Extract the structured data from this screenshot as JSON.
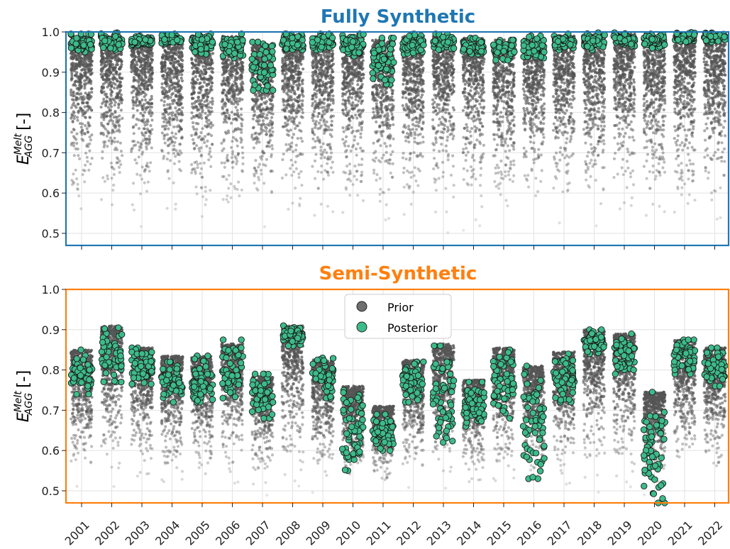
{
  "chart_data": [
    {
      "type": "scatter",
      "title": "Fully Synthetic",
      "title_color": "#1f77b4",
      "frame_color": "#1f77b4",
      "ylabel_main": "E",
      "ylabel_sup": "Melt",
      "ylabel_sub": "AGG",
      "ylabel_suffix": " [-]",
      "ylim": [
        0.47,
        1.0
      ],
      "yticks": [
        "0.5",
        "0.6",
        "0.7",
        "0.8",
        "0.9",
        "1.0"
      ],
      "grid": true,
      "categories": [
        "2001",
        "2002",
        "2003",
        "2004",
        "2005",
        "2006",
        "2007",
        "2008",
        "2009",
        "2010",
        "2011",
        "2012",
        "2013",
        "2014",
        "2015",
        "2016",
        "2017",
        "2018",
        "2019",
        "2020",
        "2021",
        "2022"
      ],
      "show_xticklabels": false,
      "series": [
        {
          "role": "prior",
          "color": "#555555",
          "description_per_year": "prior range [min, max]",
          "ranges": [
            [
              0.47,
              0.99
            ],
            [
              0.47,
              0.99
            ],
            [
              0.47,
              0.985
            ],
            [
              0.47,
              0.99
            ],
            [
              0.47,
              0.99
            ],
            [
              0.47,
              0.99
            ],
            [
              0.47,
              0.97
            ],
            [
              0.47,
              0.99
            ],
            [
              0.47,
              0.99
            ],
            [
              0.47,
              0.99
            ],
            [
              0.47,
              0.98
            ],
            [
              0.47,
              0.99
            ],
            [
              0.47,
              0.99
            ],
            [
              0.47,
              0.985
            ],
            [
              0.47,
              0.98
            ],
            [
              0.47,
              0.985
            ],
            [
              0.47,
              0.99
            ],
            [
              0.47,
              0.995
            ],
            [
              0.47,
              0.995
            ],
            [
              0.47,
              0.99
            ],
            [
              0.47,
              0.995
            ],
            [
              0.47,
              0.995
            ]
          ]
        },
        {
          "role": "posterior",
          "color": "#3dbb8a",
          "description_per_year": "posterior [min, max]",
          "ranges": [
            [
              0.95,
              0.995
            ],
            [
              0.955,
              0.998
            ],
            [
              0.965,
              0.99
            ],
            [
              0.97,
              0.995
            ],
            [
              0.945,
              0.995
            ],
            [
              0.935,
              0.995
            ],
            [
              0.855,
              0.975
            ],
            [
              0.955,
              0.995
            ],
            [
              0.955,
              0.995
            ],
            [
              0.94,
              0.995
            ],
            [
              0.87,
              0.985
            ],
            [
              0.945,
              0.995
            ],
            [
              0.955,
              0.995
            ],
            [
              0.945,
              0.985
            ],
            [
              0.93,
              0.98
            ],
            [
              0.935,
              0.99
            ],
            [
              0.955,
              0.995
            ],
            [
              0.955,
              0.998
            ],
            [
              0.965,
              0.998
            ],
            [
              0.96,
              0.995
            ],
            [
              0.975,
              0.999
            ],
            [
              0.975,
              0.998
            ]
          ]
        }
      ]
    },
    {
      "type": "scatter",
      "title": "Semi-Synthetic",
      "title_color": "#ff7f0e",
      "frame_color": "#ff7f0e",
      "ylabel_main": "E",
      "ylabel_sup": "Melt",
      "ylabel_sub": "AGG",
      "ylabel_suffix": " [-]",
      "ylim": [
        0.47,
        1.0
      ],
      "yticks": [
        "0.5",
        "0.6",
        "0.7",
        "0.8",
        "0.9",
        "1.0"
      ],
      "grid": true,
      "legend": {
        "placement": "top-center",
        "entries": [
          "Prior",
          "Posterior"
        ],
        "colors": [
          "#6f6f6f",
          "#3dbb8a"
        ]
      },
      "categories": [
        "2001",
        "2002",
        "2003",
        "2004",
        "2005",
        "2006",
        "2007",
        "2008",
        "2009",
        "2010",
        "2011",
        "2012",
        "2013",
        "2014",
        "2015",
        "2016",
        "2017",
        "2018",
        "2019",
        "2020",
        "2021",
        "2022"
      ],
      "show_xticklabels": true,
      "series": [
        {
          "role": "prior",
          "color": "#555555",
          "description_per_year": "prior range [min, max]",
          "ranges": [
            [
              0.47,
              0.85
            ],
            [
              0.47,
              0.91
            ],
            [
              0.47,
              0.855
            ],
            [
              0.47,
              0.835
            ],
            [
              0.47,
              0.835
            ],
            [
              0.47,
              0.865
            ],
            [
              0.47,
              0.785
            ],
            [
              0.47,
              0.91
            ],
            [
              0.47,
              0.825
            ],
            [
              0.47,
              0.76
            ],
            [
              0.47,
              0.71
            ],
            [
              0.47,
              0.825
            ],
            [
              0.47,
              0.865
            ],
            [
              0.47,
              0.775
            ],
            [
              0.47,
              0.855
            ],
            [
              0.47,
              0.81
            ],
            [
              0.47,
              0.845
            ],
            [
              0.47,
              0.9
            ],
            [
              0.47,
              0.89
            ],
            [
              0.47,
              0.745
            ],
            [
              0.47,
              0.875
            ],
            [
              0.47,
              0.855
            ]
          ]
        },
        {
          "role": "posterior",
          "color": "#3dbb8a",
          "description_per_year": "posterior [min, max]",
          "ranges": [
            [
              0.74,
              0.85
            ],
            [
              0.77,
              0.905
            ],
            [
              0.765,
              0.855
            ],
            [
              0.72,
              0.82
            ],
            [
              0.72,
              0.835
            ],
            [
              0.73,
              0.875
            ],
            [
              0.68,
              0.79
            ],
            [
              0.86,
              0.91
            ],
            [
              0.73,
              0.83
            ],
            [
              0.55,
              0.75
            ],
            [
              0.6,
              0.69
            ],
            [
              0.72,
              0.82
            ],
            [
              0.62,
              0.86
            ],
            [
              0.66,
              0.77
            ],
            [
              0.68,
              0.85
            ],
            [
              0.53,
              0.81
            ],
            [
              0.72,
              0.84
            ],
            [
              0.84,
              0.9
            ],
            [
              0.79,
              0.89
            ],
            [
              0.47,
              0.745
            ],
            [
              0.79,
              0.875
            ],
            [
              0.76,
              0.855
            ]
          ]
        }
      ]
    }
  ]
}
